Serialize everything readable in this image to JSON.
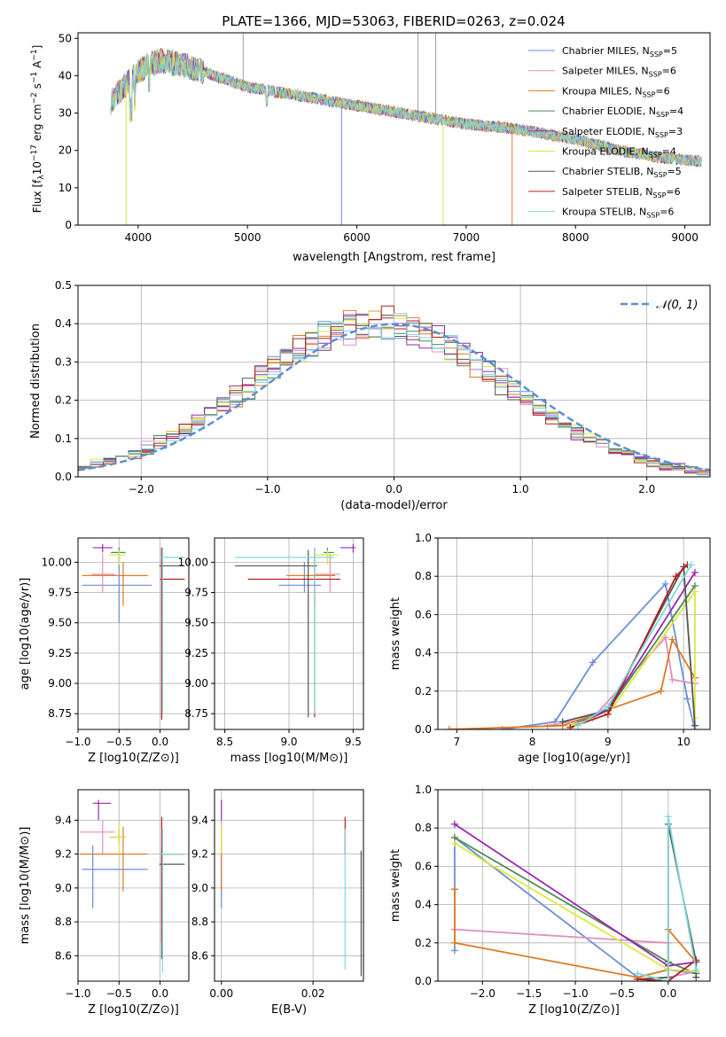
{
  "figure_title": "PLATE=1366, MJD=53063, FIBERID=0263, z=0.024",
  "series": [
    {
      "key": "chabrier_miles",
      "name": "Chabrier MILES",
      "nssp": "5",
      "color": "#6a8fd8"
    },
    {
      "key": "salpeter_miles",
      "name": "Salpeter MILES",
      "nssp": "6",
      "color": "#e58ec0"
    },
    {
      "key": "kroupa_miles",
      "name": "Kroupa MILES",
      "nssp": "6",
      "color": "#e07b22"
    },
    {
      "key": "chabrier_elodie",
      "name": "Chabrier ELODIE",
      "nssp": "4",
      "color": "#4f8a55"
    },
    {
      "key": "salpeter_elodie",
      "name": "Salpeter ELODIE",
      "nssp": "3",
      "color": "#9b27b0"
    },
    {
      "key": "kroupa_elodie",
      "name": "Kroupa ELODIE",
      "nssp": "4",
      "color": "#dde842"
    },
    {
      "key": "chabrier_stelib",
      "name": "Chabrier STELIB",
      "nssp": "5",
      "color": "#555555"
    },
    {
      "key": "salpeter_stelib",
      "name": "Salpeter STELIB",
      "nssp": "6",
      "color": "#b22020"
    },
    {
      "key": "kroupa_stelib",
      "name": "Kroupa STELIB",
      "nssp": "6",
      "color": "#7fd8dc"
    }
  ],
  "chart_data": [
    {
      "id": "spectrum",
      "type": "line",
      "xlabel": "wavelength [Angstrom, rest frame]",
      "ylabel": "Flux [f_λ 10^-17 erg cm^-2 s^-1 A^-1]",
      "xlim": [
        3450,
        9230
      ],
      "ylim": [
        0,
        51.5
      ],
      "xticks": [
        4000,
        5000,
        6000,
        7000,
        8000,
        9000
      ],
      "yticks": [
        0,
        10,
        20,
        30,
        40,
        50
      ],
      "grid": false,
      "legend": "top-right",
      "continuum": {
        "x": [
          3750,
          3800,
          3900,
          4000,
          4100,
          4200,
          4400,
          4600,
          4800,
          5000,
          5200,
          5400,
          5600,
          5800,
          6000,
          6200,
          6400,
          6600,
          6800,
          7000,
          7200,
          7400,
          7600,
          7800,
          8000,
          8200,
          8400,
          8600,
          8800,
          9000,
          9150
        ],
        "y": [
          33,
          35,
          38,
          41,
          43,
          44,
          43,
          41,
          39,
          37,
          36,
          35,
          34,
          33,
          32,
          31,
          30,
          29,
          28,
          27,
          26.5,
          26,
          25,
          24,
          23,
          21.5,
          20,
          19,
          18,
          17.5,
          17
        ]
      },
      "dips": [
        {
          "series": "kroupa_elodie",
          "x": 3890,
          "to": 0
        },
        {
          "series": "chabrier_miles",
          "x": 5860,
          "to": 0
        },
        {
          "series": "kroupa_elodie",
          "x": 6790,
          "to": 0
        },
        {
          "series": "kroupa_miles",
          "x": 7420,
          "to": 0
        }
      ],
      "spikes": [
        {
          "x": 4960,
          "to": 51.5
        },
        {
          "x": 6560,
          "to": 51.5
        },
        {
          "x": 6720,
          "to": 51.5
        }
      ]
    },
    {
      "id": "residuals",
      "type": "bar",
      "xlabel": "(data-model)/error",
      "ylabel": "Normed distribution",
      "xlim": [
        -2.5,
        2.5
      ],
      "ylim": [
        0,
        0.5
      ],
      "xticks": [
        -2,
        -1,
        0,
        1,
        2
      ],
      "yticks": [
        0.0,
        0.1,
        0.2,
        0.3,
        0.4,
        0.5
      ],
      "grid": true,
      "legend": "top-right",
      "bin_width": 0.1,
      "reference_label": "𝒩(0, 1)",
      "reference_color": "#5b8fd6"
    },
    {
      "id": "age_vs_Z",
      "type": "scatter",
      "xlabel": "Z [log10(Z/Z⊙)]",
      "ylabel": "age [log10(age/yr)]",
      "xlim": [
        -1.0,
        0.35
      ],
      "ylim": [
        8.62,
        10.2
      ],
      "xticks": [
        -1.0,
        -0.5,
        0.0
      ],
      "yticks": [
        8.75,
        9.0,
        9.25,
        9.5,
        9.75,
        10.0
      ],
      "grid": true,
      "points": [
        {
          "series": "chabrier_miles",
          "x": -0.5,
          "xlo": -0.95,
          "xhi": -0.1,
          "y": 9.81,
          "ylo": 9.5,
          "yhi": 10.05
        },
        {
          "series": "salpeter_miles",
          "x": -0.7,
          "xlo": -0.83,
          "xhi": -0.55,
          "y": 9.9,
          "ylo": 9.75,
          "yhi": 10.07
        },
        {
          "series": "kroupa_miles",
          "x": -0.45,
          "xlo": -0.95,
          "xhi": -0.15,
          "y": 9.89,
          "ylo": 9.64,
          "yhi": 10.0
        },
        {
          "series": "chabrier_elodie",
          "x": -0.5,
          "xlo": -0.6,
          "xhi": -0.42,
          "y": 10.08,
          "ylo": 10.0,
          "yhi": 10.12
        },
        {
          "series": "salpeter_elodie",
          "x": -0.7,
          "xlo": -0.82,
          "xhi": -0.58,
          "y": 10.12,
          "ylo": 10.08,
          "yhi": 10.15
        },
        {
          "series": "kroupa_elodie",
          "x": -0.5,
          "xlo": -0.62,
          "xhi": -0.42,
          "y": 10.06,
          "ylo": 9.98,
          "yhi": 10.1
        },
        {
          "series": "chabrier_stelib",
          "x": 0.02,
          "xlo": -0.01,
          "xhi": 0.3,
          "y": 9.97,
          "ylo": 8.72,
          "yhi": 10.12
        },
        {
          "series": "salpeter_stelib",
          "x": 0.02,
          "xlo": 0.0,
          "xhi": 0.3,
          "y": 9.86,
          "ylo": 8.7,
          "yhi": 10.12
        },
        {
          "series": "kroupa_stelib",
          "x": 0.03,
          "xlo": 0.0,
          "xhi": 0.3,
          "y": 10.04,
          "ylo": 8.75,
          "yhi": 10.12
        }
      ]
    },
    {
      "id": "age_vs_mass",
      "type": "scatter",
      "xlabel": "mass [log10(M/M⊙)]",
      "ylabel": "",
      "xlim": [
        8.42,
        9.58
      ],
      "ylim": [
        8.62,
        10.2
      ],
      "xticks": [
        8.5,
        9.0,
        9.5
      ],
      "yticks": [
        8.75,
        9.0,
        9.25,
        9.5,
        9.75,
        10.0
      ],
      "grid": true,
      "points": [
        {
          "series": "chabrier_miles",
          "x": 9.12,
          "xlo": 8.92,
          "xhi": 9.25,
          "y": 9.81,
          "ylo": 9.75,
          "yhi": 10.0
        },
        {
          "series": "salpeter_miles",
          "x": 9.32,
          "xlo": 9.2,
          "xhi": 9.4,
          "y": 9.9,
          "ylo": 9.75,
          "yhi": 10.07
        },
        {
          "series": "kroupa_miles",
          "x": 9.2,
          "xlo": 8.98,
          "xhi": 9.36,
          "y": 9.89,
          "ylo": 9.64,
          "yhi": 10.0
        },
        {
          "series": "chabrier_elodie",
          "x": 9.3,
          "xlo": 9.27,
          "xhi": 9.35,
          "y": 10.08,
          "ylo": 10.0,
          "yhi": 10.12
        },
        {
          "series": "salpeter_elodie",
          "x": 9.5,
          "xlo": 9.4,
          "xhi": 9.52,
          "y": 10.12,
          "ylo": 10.08,
          "yhi": 10.15
        },
        {
          "series": "kroupa_elodie",
          "x": 9.3,
          "xlo": 9.2,
          "xhi": 9.38,
          "y": 10.06,
          "ylo": 9.98,
          "yhi": 10.1
        },
        {
          "series": "chabrier_stelib",
          "x": 9.15,
          "xlo": 8.58,
          "xhi": 9.22,
          "y": 9.97,
          "ylo": 8.72,
          "yhi": 10.1
        },
        {
          "series": "salpeter_stelib",
          "x": 9.2,
          "xlo": 8.68,
          "xhi": 9.4,
          "y": 9.86,
          "ylo": 8.72,
          "yhi": 10.12
        },
        {
          "series": "kroupa_stelib",
          "x": 9.2,
          "xlo": 8.58,
          "xhi": 9.35,
          "y": 10.04,
          "ylo": 8.75,
          "yhi": 10.12
        }
      ]
    },
    {
      "id": "mass_weight_vs_age",
      "type": "line",
      "xlabel": "age [log10(age/yr)]",
      "ylabel": "mass weight",
      "xlim": [
        6.75,
        10.35
      ],
      "ylim": [
        0,
        1.0
      ],
      "xticks": [
        7,
        8,
        9,
        10
      ],
      "yticks": [
        0.0,
        0.2,
        0.4,
        0.6,
        0.8,
        1.0
      ],
      "grid": true,
      "lines": [
        {
          "series": "chabrier_miles",
          "x": [
            7.6,
            8.3,
            8.8,
            9.76,
            10.05,
            10.15
          ],
          "y": [
            0.0,
            0.04,
            0.35,
            0.76,
            0.16,
            0.0
          ]
        },
        {
          "series": "salpeter_miles",
          "x": [
            8.2,
            8.8,
            9.76,
            9.85,
            10.15
          ],
          "y": [
            0.02,
            0.06,
            0.48,
            0.26,
            0.24
          ]
        },
        {
          "series": "kroupa_miles",
          "x": [
            6.9,
            8.4,
            9.7,
            9.85,
            10.15
          ],
          "y": [
            0.0,
            0.02,
            0.2,
            0.47,
            0.27
          ]
        },
        {
          "series": "chabrier_elodie",
          "x": [
            8.5,
            9.0,
            10.15
          ],
          "y": [
            0.02,
            0.1,
            0.75
          ]
        },
        {
          "series": "salpeter_elodie",
          "x": [
            8.6,
            9.0,
            10.15
          ],
          "y": [
            0.03,
            0.1,
            0.82
          ]
        },
        {
          "series": "kroupa_elodie",
          "x": [
            8.5,
            9.0,
            10.15,
            10.15
          ],
          "y": [
            0.02,
            0.08,
            0.72,
            0.06
          ]
        },
        {
          "series": "chabrier_stelib",
          "x": [
            8.4,
            9.0,
            10.0,
            10.15
          ],
          "y": [
            0.04,
            0.1,
            0.85,
            0.02
          ]
        },
        {
          "series": "salpeter_stelib",
          "x": [
            8.5,
            9.0,
            9.9,
            10.05
          ],
          "y": [
            0.01,
            0.08,
            0.8,
            0.86
          ]
        },
        {
          "series": "kroupa_stelib",
          "x": [
            8.6,
            9.0,
            10.1
          ],
          "y": [
            0.02,
            0.12,
            0.86
          ]
        }
      ]
    },
    {
      "id": "mass_vs_Z",
      "type": "scatter",
      "xlabel": "Z [log10(Z/Z⊙)]",
      "ylabel": "mass [log10(M/M⊙)]",
      "xlim": [
        -1.0,
        0.35
      ],
      "ylim": [
        8.45,
        9.58
      ],
      "xticks": [
        -1.0,
        -0.5,
        0.0
      ],
      "yticks": [
        8.6,
        8.8,
        9.0,
        9.2,
        9.4
      ],
      "grid": true,
      "points": [
        {
          "series": "chabrier_miles",
          "x": -0.82,
          "xlo": -0.95,
          "xhi": -0.15,
          "y": 9.11,
          "ylo": 8.88,
          "yhi": 9.25
        },
        {
          "series": "salpeter_miles",
          "x": -0.7,
          "xlo": -0.98,
          "xhi": -0.55,
          "y": 9.33,
          "ylo": 9.2,
          "yhi": 9.4
        },
        {
          "series": "kroupa_miles",
          "x": -0.45,
          "xlo": -0.98,
          "xhi": -0.15,
          "y": 9.2,
          "ylo": 8.98,
          "yhi": 9.36
        },
        {
          "series": "chabrier_elodie",
          "x": -0.5,
          "xlo": -0.6,
          "xhi": -0.42,
          "y": 9.3,
          "ylo": 9.27,
          "yhi": 9.35
        },
        {
          "series": "salpeter_elodie",
          "x": -0.75,
          "xlo": -0.82,
          "xhi": -0.6,
          "y": 9.5,
          "ylo": 9.4,
          "yhi": 9.52
        },
        {
          "series": "kroupa_elodie",
          "x": -0.5,
          "xlo": -0.62,
          "xhi": -0.42,
          "y": 9.3,
          "ylo": 9.2,
          "yhi": 9.38
        },
        {
          "series": "chabrier_stelib",
          "x": 0.02,
          "xlo": -0.01,
          "xhi": 0.3,
          "y": 9.14,
          "ylo": 8.58,
          "yhi": 9.22
        },
        {
          "series": "salpeter_stelib",
          "x": 0.02,
          "xlo": 0.0,
          "xhi": 0.3,
          "y": 9.2,
          "ylo": 8.68,
          "yhi": 9.42
        },
        {
          "series": "kroupa_stelib",
          "x": 0.03,
          "xlo": 0.0,
          "xhi": 0.3,
          "y": 9.2,
          "ylo": 8.5,
          "yhi": 9.35
        }
      ]
    },
    {
      "id": "mass_vs_ebv",
      "type": "scatter",
      "xlabel": "E(B-V)",
      "ylabel": "",
      "xlim": [
        -0.0015,
        0.031
      ],
      "ylim": [
        8.45,
        9.58
      ],
      "xticks": [
        0.0,
        0.02
      ],
      "yticks": [
        8.6,
        8.8,
        9.0,
        9.2,
        9.4
      ],
      "grid": true,
      "points": [
        {
          "series": "chabrier_miles",
          "x": 0.0,
          "y": 9.11,
          "ylo": 8.88,
          "yhi": 9.25
        },
        {
          "series": "salpeter_miles",
          "x": 0.0,
          "y": 9.33,
          "ylo": 9.2,
          "yhi": 9.4
        },
        {
          "series": "kroupa_miles",
          "x": 0.0,
          "y": 9.2,
          "ylo": 8.98,
          "yhi": 9.36
        },
        {
          "series": "salpeter_elodie",
          "x": 0.0,
          "y": 9.5,
          "ylo": 9.4,
          "yhi": 9.52
        },
        {
          "series": "kroupa_elodie",
          "x": 0.0,
          "y": 9.3,
          "ylo": 9.2,
          "yhi": 9.38
        },
        {
          "series": "chabrier_stelib",
          "x": 0.0305,
          "y": 9.14,
          "ylo": 8.48,
          "yhi": 9.22
        },
        {
          "series": "salpeter_stelib",
          "x": 0.027,
          "y": 9.3,
          "ylo": 9.2,
          "yhi": 9.42
        },
        {
          "series": "kroupa_stelib",
          "x": 0.027,
          "y": 9.0,
          "ylo": 8.52,
          "yhi": 9.35
        }
      ]
    },
    {
      "id": "mass_weight_vs_Z",
      "type": "line",
      "xlabel": "Z [log10(Z/Z⊙)]",
      "ylabel": "mass weight",
      "xlim": [
        -2.48,
        0.45
      ],
      "ylim": [
        0,
        1.0
      ],
      "xticks": [
        -2.0,
        -1.5,
        -1.0,
        -0.5,
        0.0
      ],
      "yticks": [
        0.0,
        0.2,
        0.4,
        0.6,
        0.8,
        1.0
      ],
      "grid": true,
      "lines": [
        {
          "series": "chabrier_miles",
          "x": [
            -2.3,
            -2.3,
            -0.33,
            0.0,
            0.3
          ],
          "y": [
            0.16,
            0.75,
            0.02,
            0.06,
            0.04
          ]
        },
        {
          "series": "salpeter_miles",
          "x": [
            -2.3,
            -2.3,
            0.0,
            0.0,
            0.3
          ],
          "y": [
            0.48,
            0.27,
            0.2,
            0.02,
            0.05
          ]
        },
        {
          "series": "kroupa_miles",
          "x": [
            -2.3,
            -2.3,
            -0.33,
            0.0,
            0.0,
            0.3
          ],
          "y": [
            0.48,
            0.2,
            0.02,
            0.06,
            0.27,
            0.1
          ]
        },
        {
          "series": "chabrier_elodie",
          "x": [
            -2.3,
            0.0,
            0.3
          ],
          "y": [
            0.75,
            0.1,
            0.04
          ]
        },
        {
          "series": "salpeter_elodie",
          "x": [
            -2.3,
            0.0,
            0.3
          ],
          "y": [
            0.82,
            0.08,
            0.1
          ]
        },
        {
          "series": "kroupa_elodie",
          "x": [
            -2.3,
            0.0,
            0.3
          ],
          "y": [
            0.72,
            0.06,
            0.05
          ]
        },
        {
          "series": "chabrier_stelib",
          "x": [
            -0.33,
            0.0,
            0.0,
            0.3,
            0.3
          ],
          "y": [
            0.01,
            0.02,
            0.82,
            0.1,
            0.02
          ]
        },
        {
          "series": "salpeter_stelib",
          "x": [
            -0.33,
            0.0,
            0.3
          ],
          "y": [
            0.01,
            0.0,
            0.11
          ]
        },
        {
          "series": "kroupa_stelib",
          "x": [
            -0.33,
            0.0,
            0.0,
            0.3
          ],
          "y": [
            0.04,
            0.0,
            0.86,
            0.06
          ]
        }
      ]
    }
  ]
}
